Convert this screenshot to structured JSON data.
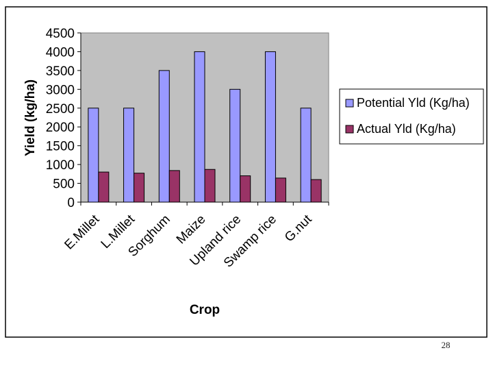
{
  "page": {
    "number": "28"
  },
  "colors": {
    "potential": "#9999ff",
    "actual": "#993366",
    "plot_background": "#c0c0c0",
    "frame_border": "#000000"
  },
  "chart_data": {
    "type": "bar",
    "title": "",
    "xlabel": "Crop",
    "ylabel": "Yield (kg/ha)",
    "ylim": [
      0,
      4500
    ],
    "yticks": [
      0,
      500,
      1000,
      1500,
      2000,
      2500,
      3000,
      3500,
      4000,
      4500
    ],
    "categories": [
      "E.Millet",
      "L.Millet",
      "Sorghum",
      "Maize",
      "Upland rice",
      "Swamp rice",
      "G.nut"
    ],
    "series": [
      {
        "name": "Potential Yld (Kg/ha)",
        "values": [
          2500,
          2500,
          3500,
          4000,
          3000,
          4000,
          2500
        ]
      },
      {
        "name": "Actual Yld (Kg/ha)",
        "values": [
          800,
          770,
          840,
          870,
          700,
          640,
          600
        ]
      }
    ],
    "grid": false,
    "legend": "right"
  }
}
